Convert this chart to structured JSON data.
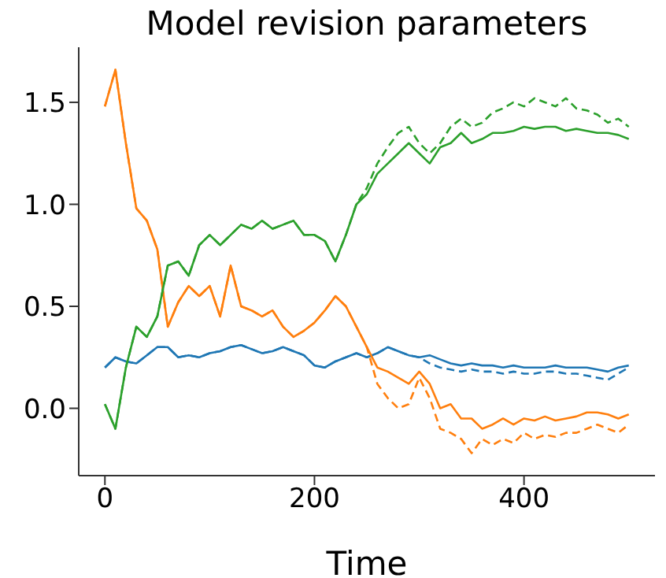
{
  "chart_data": {
    "type": "line",
    "title": "Model revision parameters",
    "xlabel": "Time",
    "x": [
      0,
      10,
      20,
      30,
      40,
      50,
      60,
      70,
      80,
      90,
      100,
      110,
      120,
      130,
      140,
      150,
      160,
      170,
      180,
      190,
      200,
      210,
      220,
      230,
      240,
      250,
      260,
      270,
      280,
      290,
      300,
      310,
      320,
      330,
      340,
      350,
      360,
      370,
      380,
      390,
      400,
      410,
      420,
      430,
      440,
      450,
      460,
      470,
      480,
      490,
      500
    ],
    "xlim": [
      -25,
      525
    ],
    "xticks": [
      0,
      200,
      400
    ],
    "ylim": [
      -0.33,
      1.77
    ],
    "yticks": [
      {
        "value": 0,
        "label": "0.0"
      },
      0.5,
      {
        "value": 1,
        "label": "1.0"
      },
      1.5
    ],
    "series": [
      {
        "color": "#1f77b4",
        "line_style": "solid",
        "values": [
          0.2,
          0.25,
          0.23,
          0.22,
          0.26,
          0.3,
          0.3,
          0.25,
          0.26,
          0.25,
          0.27,
          0.28,
          0.3,
          0.31,
          0.29,
          0.27,
          0.28,
          0.3,
          0.28,
          0.26,
          0.21,
          0.2,
          0.23,
          0.25,
          0.27,
          0.25,
          0.27,
          0.3,
          0.28,
          0.26,
          0.25,
          0.26,
          0.24,
          0.22,
          0.21,
          0.22,
          0.21,
          0.21,
          0.2,
          0.21,
          0.2,
          0.2,
          0.2,
          0.21,
          0.2,
          0.2,
          0.2,
          0.19,
          0.18,
          0.2,
          0.21
        ]
      },
      {
        "color": "#1f77b4",
        "line_style": "dashed",
        "values": [
          0.2,
          0.25,
          0.23,
          0.22,
          0.26,
          0.3,
          0.3,
          0.25,
          0.26,
          0.25,
          0.27,
          0.28,
          0.3,
          0.31,
          0.29,
          0.27,
          0.28,
          0.3,
          0.28,
          0.26,
          0.21,
          0.2,
          0.23,
          0.25,
          0.27,
          0.25,
          0.27,
          0.3,
          0.28,
          0.26,
          0.25,
          0.22,
          0.2,
          0.19,
          0.18,
          0.19,
          0.18,
          0.18,
          0.17,
          0.18,
          0.17,
          0.17,
          0.18,
          0.18,
          0.17,
          0.17,
          0.16,
          0.15,
          0.14,
          0.17,
          0.2
        ]
      },
      {
        "color": "#ff7f0e",
        "line_style": "solid",
        "values": [
          1.48,
          1.66,
          1.3,
          0.98,
          0.92,
          0.78,
          0.4,
          0.52,
          0.6,
          0.55,
          0.6,
          0.45,
          0.7,
          0.5,
          0.48,
          0.45,
          0.48,
          0.4,
          0.35,
          0.38,
          0.42,
          0.48,
          0.55,
          0.5,
          0.4,
          0.3,
          0.2,
          0.18,
          0.15,
          0.12,
          0.18,
          0.12,
          0.0,
          0.02,
          -0.05,
          -0.05,
          -0.1,
          -0.08,
          -0.05,
          -0.08,
          -0.05,
          -0.06,
          -0.04,
          -0.06,
          -0.05,
          -0.04,
          -0.02,
          -0.02,
          -0.03,
          -0.05,
          -0.03
        ]
      },
      {
        "color": "#ff7f0e",
        "line_style": "dashed",
        "values": [
          1.48,
          1.66,
          1.3,
          0.98,
          0.92,
          0.78,
          0.4,
          0.52,
          0.6,
          0.55,
          0.6,
          0.45,
          0.7,
          0.5,
          0.48,
          0.45,
          0.48,
          0.4,
          0.35,
          0.38,
          0.42,
          0.48,
          0.55,
          0.5,
          0.4,
          0.3,
          0.12,
          0.05,
          0.0,
          0.02,
          0.15,
          0.05,
          -0.1,
          -0.12,
          -0.15,
          -0.22,
          -0.15,
          -0.18,
          -0.15,
          -0.17,
          -0.12,
          -0.15,
          -0.13,
          -0.14,
          -0.12,
          -0.12,
          -0.1,
          -0.08,
          -0.1,
          -0.12,
          -0.08
        ]
      },
      {
        "color": "#2ca02c",
        "line_style": "solid",
        "values": [
          0.02,
          -0.1,
          0.2,
          0.4,
          0.35,
          0.45,
          0.7,
          0.72,
          0.65,
          0.8,
          0.85,
          0.8,
          0.85,
          0.9,
          0.88,
          0.92,
          0.88,
          0.9,
          0.92,
          0.85,
          0.85,
          0.82,
          0.72,
          0.85,
          1.0,
          1.05,
          1.15,
          1.2,
          1.25,
          1.3,
          1.25,
          1.2,
          1.28,
          1.3,
          1.35,
          1.3,
          1.32,
          1.35,
          1.35,
          1.36,
          1.38,
          1.37,
          1.38,
          1.38,
          1.36,
          1.37,
          1.36,
          1.35,
          1.35,
          1.34,
          1.32
        ]
      },
      {
        "color": "#2ca02c",
        "line_style": "dashed",
        "values": [
          0.02,
          -0.1,
          0.2,
          0.4,
          0.35,
          0.45,
          0.7,
          0.72,
          0.65,
          0.8,
          0.85,
          0.8,
          0.85,
          0.9,
          0.88,
          0.92,
          0.88,
          0.9,
          0.92,
          0.85,
          0.85,
          0.82,
          0.72,
          0.85,
          1.0,
          1.08,
          1.2,
          1.28,
          1.35,
          1.38,
          1.3,
          1.25,
          1.3,
          1.38,
          1.42,
          1.38,
          1.4,
          1.45,
          1.47,
          1.5,
          1.48,
          1.52,
          1.5,
          1.48,
          1.52,
          1.47,
          1.46,
          1.44,
          1.4,
          1.42,
          1.38
        ]
      }
    ]
  }
}
